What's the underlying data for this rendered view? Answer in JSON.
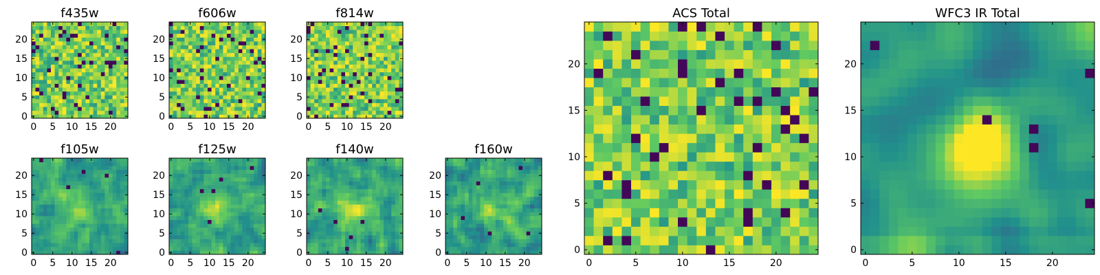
{
  "chart_data": [
    {
      "type": "heatmap",
      "title": "f435w",
      "grid_size": 25,
      "xticks": [
        "0",
        "5",
        "10",
        "15",
        "20"
      ],
      "yticks": [
        "0",
        "5",
        "10",
        "15",
        "20"
      ],
      "xlim": [
        -0.5,
        24.5
      ],
      "ylim": [
        -0.5,
        24.5
      ],
      "pattern": "fine_noise",
      "seed": 11
    },
    {
      "type": "heatmap",
      "title": "f606w",
      "grid_size": 25,
      "xticks": [
        "0",
        "5",
        "10",
        "15",
        "20"
      ],
      "yticks": [
        "0",
        "5",
        "10",
        "15",
        "20"
      ],
      "xlim": [
        -0.5,
        24.5
      ],
      "ylim": [
        -0.5,
        24.5
      ],
      "pattern": "fine_noise",
      "seed": 23
    },
    {
      "type": "heatmap",
      "title": "f814w",
      "grid_size": 25,
      "xticks": [
        "0",
        "5",
        "10",
        "15",
        "20"
      ],
      "yticks": [
        "0",
        "5",
        "10",
        "15",
        "20"
      ],
      "xlim": [
        -0.5,
        24.5
      ],
      "ylim": [
        -0.5,
        24.5
      ],
      "pattern": "fine_noise",
      "seed": 37
    },
    {
      "type": "heatmap",
      "title": "f105w",
      "grid_size": 25,
      "xticks": [
        "0",
        "5",
        "10",
        "15",
        "20"
      ],
      "yticks": [
        "0",
        "5",
        "10",
        "15",
        "20"
      ],
      "xlim": [
        -0.5,
        24.5
      ],
      "ylim": [
        -0.5,
        24.5
      ],
      "pattern": "smooth_blob",
      "seed": 41
    },
    {
      "type": "heatmap",
      "title": "f125w",
      "grid_size": 25,
      "xticks": [
        "0",
        "5",
        "10",
        "15",
        "20"
      ],
      "yticks": [
        "0",
        "5",
        "10",
        "15",
        "20"
      ],
      "xlim": [
        -0.5,
        24.5
      ],
      "ylim": [
        -0.5,
        24.5
      ],
      "pattern": "smooth_blob",
      "seed": 53
    },
    {
      "type": "heatmap",
      "title": "f140w",
      "grid_size": 25,
      "xticks": [
        "0",
        "5",
        "10",
        "15",
        "20"
      ],
      "yticks": [
        "0",
        "5",
        "10",
        "15",
        "20"
      ],
      "xlim": [
        -0.5,
        24.5
      ],
      "ylim": [
        -0.5,
        24.5
      ],
      "pattern": "smooth_blob",
      "seed": 67
    },
    {
      "type": "heatmap",
      "title": "f160w",
      "grid_size": 25,
      "xticks": [
        "0",
        "5",
        "10",
        "15",
        "20"
      ],
      "yticks": [
        "0",
        "5",
        "10",
        "15",
        "20"
      ],
      "xlim": [
        -0.5,
        24.5
      ],
      "ylim": [
        -0.5,
        24.5
      ],
      "pattern": "smooth_blob",
      "seed": 79
    },
    {
      "type": "heatmap",
      "title": "ACS Total",
      "grid_size": 25,
      "xticks": [
        "0",
        "5",
        "10",
        "15",
        "20"
      ],
      "yticks": [
        "0",
        "5",
        "10",
        "15",
        "20"
      ],
      "xlim": [
        -0.5,
        24.5
      ],
      "ylim": [
        -0.5,
        24.5
      ],
      "pattern": "fine_noise",
      "seed": 97
    },
    {
      "type": "heatmap",
      "title": "WFC3 IR Total",
      "grid_size": 25,
      "xticks": [
        "0",
        "5",
        "10",
        "15",
        "20"
      ],
      "yticks": [
        "0",
        "5",
        "10",
        "15",
        "20"
      ],
      "xlim": [
        -0.5,
        24.5
      ],
      "ylim": [
        -0.5,
        24.5
      ],
      "pattern": "central_source",
      "seed": 101
    }
  ],
  "colormap": [
    "#440154",
    "#3b528b",
    "#21918c",
    "#5ec962",
    "#fde725"
  ]
}
